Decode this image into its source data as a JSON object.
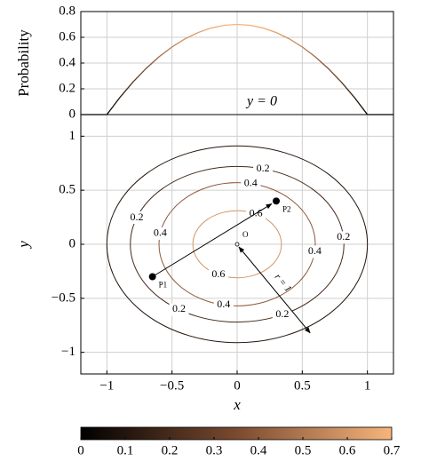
{
  "chart_data": [
    {
      "type": "line",
      "ylabel": "Probability",
      "annotation": "y = 0",
      "xlim": [
        -1.2,
        1.2
      ],
      "ylim": [
        0,
        0.8
      ],
      "yticks": [
        0,
        0.2,
        0.4,
        0.6,
        0.8
      ],
      "grid": true,
      "x": [
        -1.2,
        -1.1,
        -1.0,
        -0.9,
        -0.8,
        -0.7,
        -0.6,
        -0.5,
        -0.4,
        -0.3,
        -0.2,
        -0.1,
        0,
        0.1,
        0.2,
        0.3,
        0.4,
        0.5,
        0.6,
        0.7,
        0.8,
        0.9,
        1.0,
        1.1,
        1.2
      ],
      "values": [
        0,
        0,
        0,
        0.133,
        0.252,
        0.357,
        0.448,
        0.525,
        0.588,
        0.637,
        0.672,
        0.693,
        0.7,
        0.693,
        0.672,
        0.637,
        0.588,
        0.525,
        0.448,
        0.357,
        0.252,
        0.133,
        0,
        0,
        0
      ]
    },
    {
      "type": "contour",
      "xlabel": "x",
      "ylabel": "y",
      "xlim": [
        -1.2,
        1.2
      ],
      "ylim": [
        -1.2,
        1.2
      ],
      "grid": true,
      "xticks": [
        {
          "value": -1,
          "label": "−1"
        },
        {
          "value": -0.5,
          "label": "−0.5"
        },
        0,
        0.5,
        1
      ],
      "yticks": [
        {
          "value": -1,
          "label": "−1"
        },
        {
          "value": -0.5,
          "label": "−0.5"
        },
        0,
        0.5,
        1
      ],
      "contours": [
        {
          "level": 0.1,
          "rx": 1.0,
          "ry": 0.91
        },
        {
          "level": 0.2,
          "rx": 0.82,
          "ry": 0.72
        },
        {
          "level": 0.4,
          "rx": 0.6,
          "ry": 0.57
        },
        {
          "level": 0.6,
          "rx": 0.34,
          "ry": 0.31
        }
      ],
      "points": [
        {
          "label": "P1",
          "x": -0.65,
          "y": -0.3
        },
        {
          "label": "P2",
          "x": 0.3,
          "y": 0.4
        },
        {
          "label": "O",
          "x": 0,
          "y": 0
        }
      ],
      "radius_label": "r = 1"
    },
    {
      "type": "colorbar",
      "xlim": [
        0,
        0.7
      ],
      "xticks": [
        0,
        0.1,
        0.2,
        0.3,
        0.4,
        0.5,
        0.6,
        0.7
      ],
      "colormap": [
        "#000000",
        "#7a4a2f",
        "#f7b57c"
      ]
    }
  ]
}
